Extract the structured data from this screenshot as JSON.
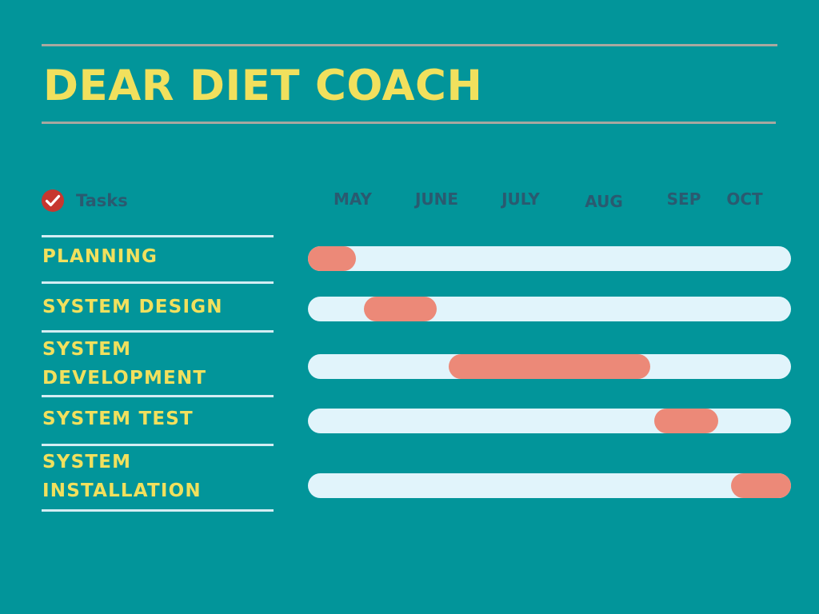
{
  "page": {
    "title": "DEAR DIET COACH",
    "tasks_header": "Tasks"
  },
  "colors": {
    "background": "#02959a",
    "title": "#f1e05d",
    "task_label": "#f1e05d",
    "month_label": "#2a5a70",
    "track": "#e1f4fb",
    "bar": "#ec8978",
    "rule": "#a8a8a0",
    "divider": "#d4edf3",
    "check_icon": "#c7372f"
  },
  "icons": {
    "tasks_header": "check-circle-icon"
  },
  "chart_data": {
    "type": "gantt",
    "title": "DEAR DIET COACH",
    "months": [
      "MAY",
      "JUNE",
      "JULY",
      "AUG",
      "SEP",
      "OCT"
    ],
    "scale_unit": "months from start of MAY",
    "xlim": [
      0,
      6
    ],
    "tasks": [
      {
        "name": "PLANNING",
        "start": 0.0,
        "end": 0.6
      },
      {
        "name": "SYSTEM DESIGN",
        "start": 0.7,
        "end": 1.6
      },
      {
        "name": "SYSTEM DEVELOPMENT",
        "start": 1.75,
        "end": 4.25
      },
      {
        "name": "SYSTEM TEST",
        "start": 4.3,
        "end": 5.1
      },
      {
        "name": "SYSTEM INSTALLATION",
        "start": 5.25,
        "end": 6.0
      }
    ]
  }
}
